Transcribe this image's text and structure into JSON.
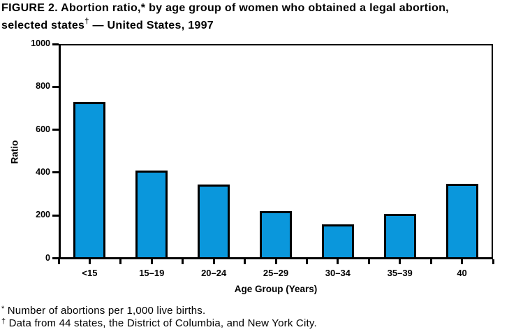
{
  "figure": {
    "title_line1": "FIGURE 2. Abortion ratio,* by age group of women who obtained a legal abortion,",
    "title_line2_pre": "selected states",
    "title_line2_sup": "†",
    "title_line2_post": " — United States, 1997"
  },
  "chart_data": {
    "type": "bar",
    "title": "FIGURE 2. Abortion ratio, by age group of women who obtained a legal abortion, selected states — United States, 1997",
    "categories": [
      "<15",
      "15–19",
      "20–24",
      "25–29",
      "30–34",
      "35–39",
      "40"
    ],
    "values": [
      730,
      408,
      345,
      220,
      158,
      208,
      347
    ],
    "xlabel": "Age Group (Years)",
    "ylabel": "Ratio",
    "ylim": [
      0,
      1000
    ],
    "yticks": [
      0,
      200,
      400,
      600,
      800,
      1000
    ],
    "grid": false,
    "legend": "none",
    "bar_color": "#0a97dc",
    "bar_border_color": "#000000",
    "axis_color": "#000000"
  },
  "footnotes": [
    {
      "marker": "*",
      "text": " Number of abortions per 1,000 live births."
    },
    {
      "marker": "†",
      "text": " Data from 44 states, the District of Columbia, and New York City."
    }
  ]
}
